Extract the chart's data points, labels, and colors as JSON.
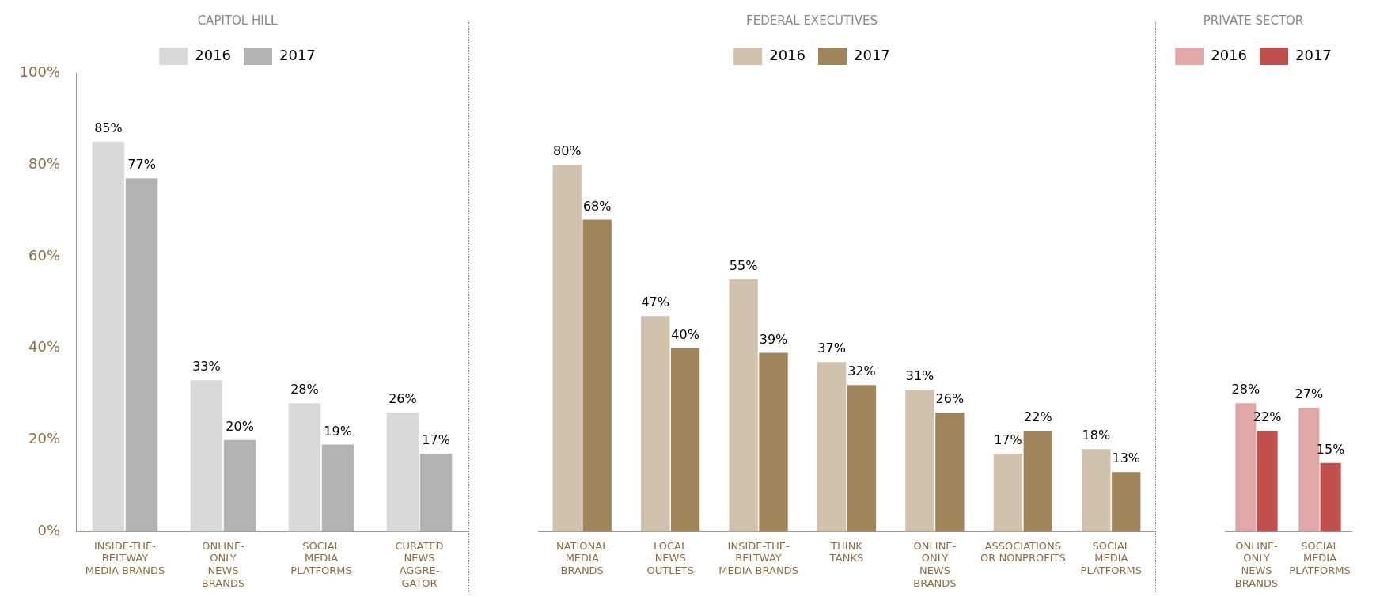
{
  "chart_data": [
    {
      "type": "bar",
      "title": "CAPITOL HILL",
      "categories": [
        "INSIDE-THE-\nBELTWAY\nMEDIA BRANDS",
        "ONLINE-\nONLY\nNEWS\nBRANDS",
        "SOCIAL\nMEDIA\nPLATFORMS",
        "CURATED\nNEWS\nAGGRE-\nGATOR"
      ],
      "series": [
        {
          "name": "2016",
          "color": "#d9d9d9",
          "values": [
            85,
            33,
            28,
            26
          ],
          "value_labels": [
            "85%",
            "33%",
            "28%",
            "26%"
          ]
        },
        {
          "name": "2017",
          "color": "#b3b3b3",
          "values": [
            77,
            20,
            19,
            17
          ],
          "value_labels": [
            "77%",
            "20%",
            "19%",
            "17%"
          ]
        }
      ],
      "ylim": [
        0,
        100
      ],
      "yticks": [
        {
          "value": 0,
          "label": "0%"
        },
        {
          "value": 20,
          "label": "20%"
        },
        {
          "value": 40,
          "label": "40%"
        },
        {
          "value": 60,
          "label": "60%"
        },
        {
          "value": 80,
          "label": "80%"
        },
        {
          "value": 100,
          "label": "100%"
        }
      ],
      "legend": "top"
    },
    {
      "type": "bar",
      "title": "FEDERAL EXECUTIVES",
      "categories": [
        "NATIONAL\nMEDIA\nBRANDS",
        "LOCAL\nNEWS\nOUTLETS",
        "INSIDE-THE-\nBELTWAY\nMEDIA BRANDS",
        "THINK\nTANKS",
        "ONLINE-\nONLY\nNEWS\nBRANDS",
        "ASSOCIATIONS\nOR NONPROFITS",
        "SOCIAL\nMEDIA\nPLATFORMS"
      ],
      "series": [
        {
          "name": "2016",
          "color": "#d0c2ad",
          "values": [
            80,
            47,
            55,
            37,
            31,
            17,
            18
          ],
          "value_labels": [
            "80%",
            "47%",
            "55%",
            "37%",
            "31%",
            "17%",
            "18%"
          ]
        },
        {
          "name": "2017",
          "color": "#a0855b",
          "values": [
            68,
            40,
            39,
            32,
            26,
            22,
            13
          ],
          "value_labels": [
            "68%",
            "40%",
            "39%",
            "32%",
            "26%",
            "22%",
            "13%"
          ]
        }
      ],
      "ylim": [
        0,
        100
      ],
      "tick_labels": "x",
      "legend": "top"
    },
    {
      "type": "bar",
      "title": "PRIVATE SECTOR",
      "categories": [
        "ONLINE-\nONLY\nNEWS\nBRANDS",
        "SOCIAL\nMEDIA\nPLATFORMS"
      ],
      "series": [
        {
          "name": "2016",
          "color": "#e0a8a6",
          "values": [
            28,
            27
          ],
          "value_labels": [
            "28%",
            "27%"
          ]
        },
        {
          "name": "2017",
          "color": "#c0504d",
          "values": [
            22,
            15
          ],
          "value_labels": [
            "22%",
            "15%"
          ]
        }
      ],
      "ylim": [
        0,
        100
      ],
      "tick_labels": "x",
      "legend": "top"
    }
  ]
}
